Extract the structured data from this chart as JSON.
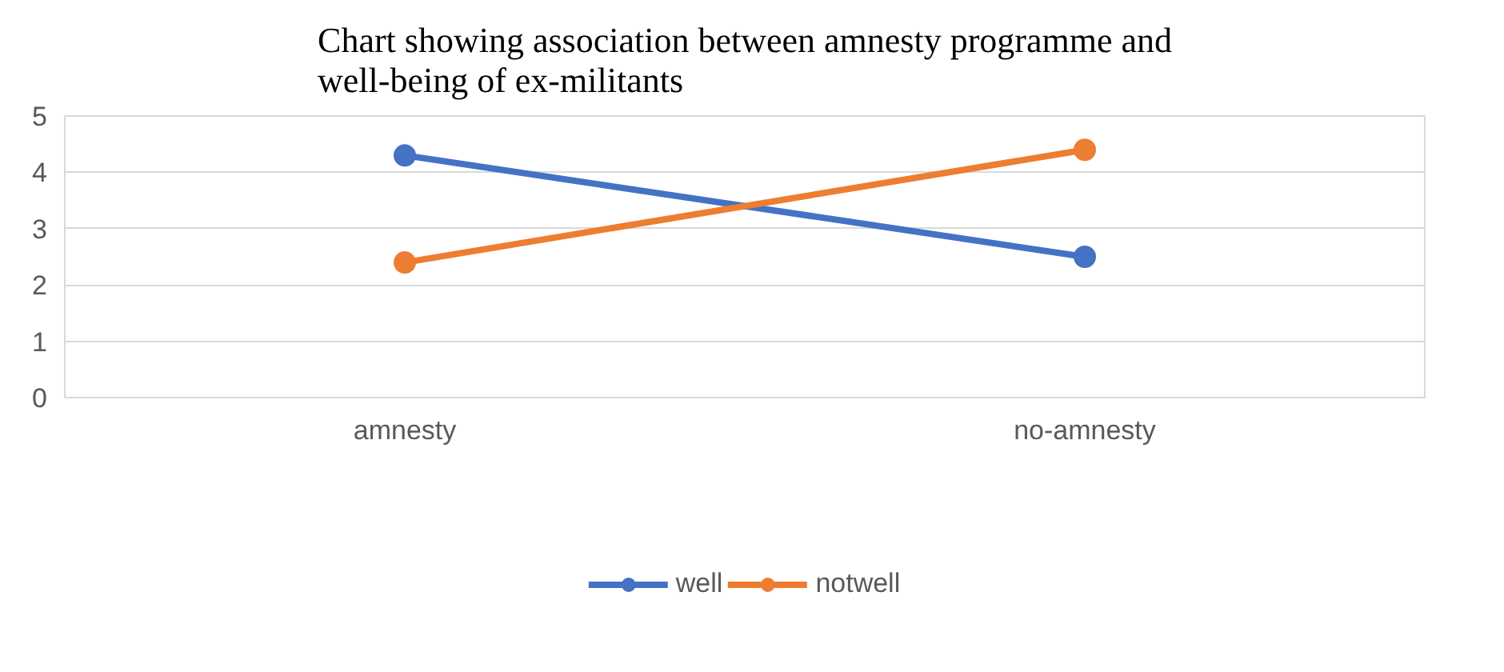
{
  "chart_data": {
    "type": "line",
    "title": "Chart showing association between amnesty programme and well-being of ex-militants",
    "categories": [
      "amnesty",
      "no-amnesty"
    ],
    "series": [
      {
        "name": "well",
        "color": "#4472c4",
        "values": [
          4.3,
          2.5
        ]
      },
      {
        "name": "notwell",
        "color": "#ed7d31",
        "values": [
          2.4,
          4.4
        ]
      }
    ],
    "ylim": [
      0,
      5
    ],
    "yticks": [
      0,
      1,
      2,
      3,
      4,
      5
    ],
    "grid": "y",
    "legend": "bottom",
    "marker": "circle",
    "line_style": "solid"
  }
}
